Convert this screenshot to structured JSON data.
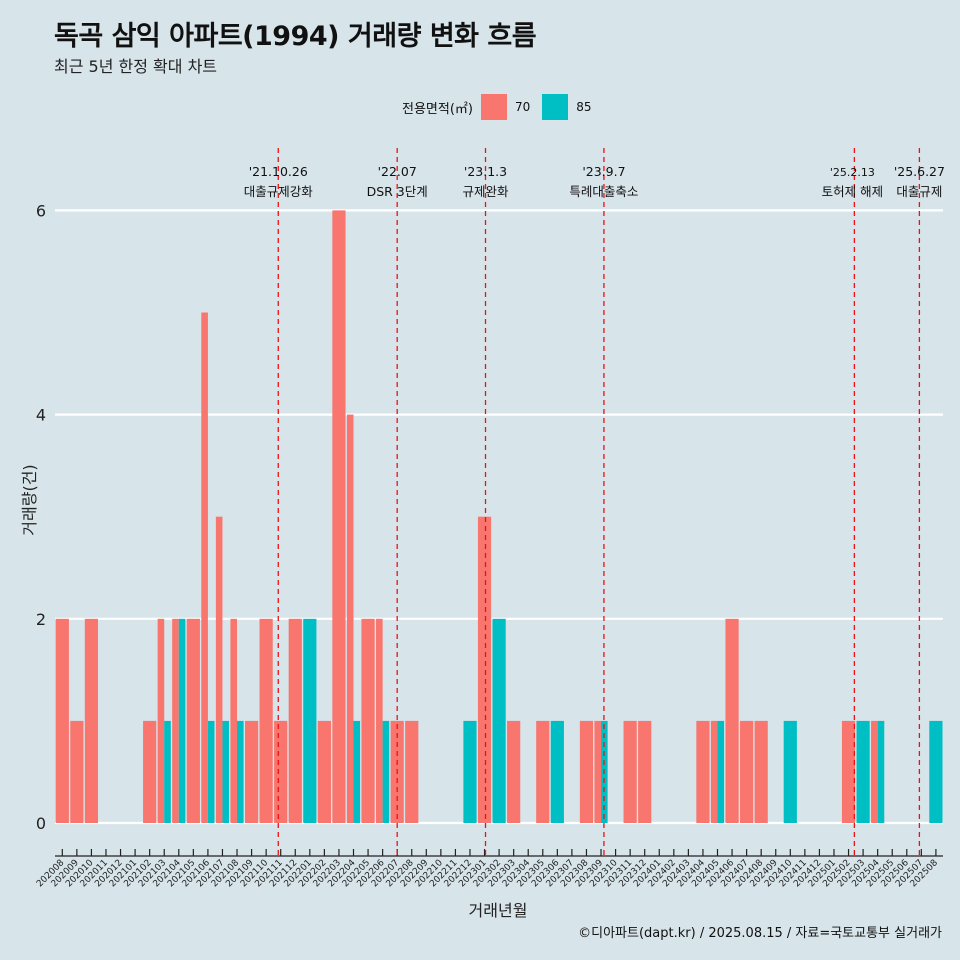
{
  "title": "독곡 삼익 아파트(1994) 거래량 변화 흐름",
  "subtitle": "최근 5년 한정 확대 차트",
  "caption": "©디아파트(dapt.kr) / 2025.08.15 / 자료=국토교통부 실거래가",
  "colors": {
    "70": "#f8766d",
    "85": "#00bfc4",
    "background": "#d7e4ea",
    "grid": "#ffffff",
    "event_line": "#ee1111"
  },
  "chart_data": {
    "type": "bar",
    "title": "독곡 삼익 아파트(1994) 거래량 변화 흐름",
    "subtitle": "최근 5년 한정 확대 차트",
    "xlabel": "거래년월",
    "ylabel": "거래량(건)",
    "ylim": [
      0,
      6.5
    ],
    "yticks": [
      0,
      2,
      4,
      6
    ],
    "legend_title": "전용면적(㎡)",
    "legend_position": "top",
    "grid": true,
    "categories": [
      "202008",
      "202009",
      "202010",
      "202011",
      "202012",
      "202101",
      "202102",
      "202103",
      "202104",
      "202105",
      "202106",
      "202107",
      "202108",
      "202109",
      "202110",
      "202111",
      "202112",
      "202201",
      "202202",
      "202203",
      "202204",
      "202205",
      "202206",
      "202207",
      "202208",
      "202209",
      "202210",
      "202211",
      "202212",
      "202301",
      "202302",
      "202303",
      "202304",
      "202305",
      "202306",
      "202307",
      "202308",
      "202309",
      "202310",
      "202311",
      "202312",
      "202401",
      "202402",
      "202403",
      "202404",
      "202405",
      "202406",
      "202407",
      "202408",
      "202409",
      "202410",
      "202411",
      "202412",
      "202501",
      "202502",
      "202503",
      "202504",
      "202505",
      "202506",
      "202507",
      "202508"
    ],
    "series": [
      {
        "name": "70",
        "values": [
          2,
          1,
          2,
          0,
          0,
          0,
          1,
          2,
          2,
          2,
          5,
          3,
          2,
          1,
          2,
          1,
          2,
          0,
          1,
          6,
          4,
          2,
          2,
          1,
          1,
          0,
          0,
          0,
          0,
          3,
          0,
          1,
          0,
          1,
          0,
          0,
          1,
          1,
          0,
          1,
          1,
          0,
          0,
          0,
          1,
          1,
          2,
          1,
          1,
          0,
          0,
          0,
          0,
          0,
          1,
          0,
          1,
          0,
          0,
          0,
          0
        ]
      },
      {
        "name": "85",
        "values": [
          0,
          0,
          0,
          0,
          0,
          0,
          0,
          1,
          2,
          0,
          1,
          1,
          1,
          0,
          0,
          0,
          0,
          2,
          0,
          0,
          1,
          0,
          1,
          0,
          0,
          0,
          0,
          0,
          1,
          0,
          2,
          0,
          0,
          0,
          1,
          0,
          0,
          1,
          0,
          0,
          0,
          0,
          0,
          0,
          0,
          1,
          0,
          0,
          0,
          0,
          1,
          0,
          0,
          0,
          0,
          1,
          1,
          0,
          0,
          0,
          1
        ]
      }
    ],
    "events": [
      {
        "date": "'21.10.26",
        "label": "대출규제강화"
      },
      {
        "date": "'22.07",
        "label": "DSR 3단계"
      },
      {
        "date": "'23.1.3",
        "label": "규제완화"
      },
      {
        "date": "'23.9.7",
        "label": "특례대출축소"
      },
      {
        "date": "'25.2.13",
        "label": "토허제 해제"
      },
      {
        "date": "'25.6.27",
        "label": "대출규제"
      }
    ]
  }
}
